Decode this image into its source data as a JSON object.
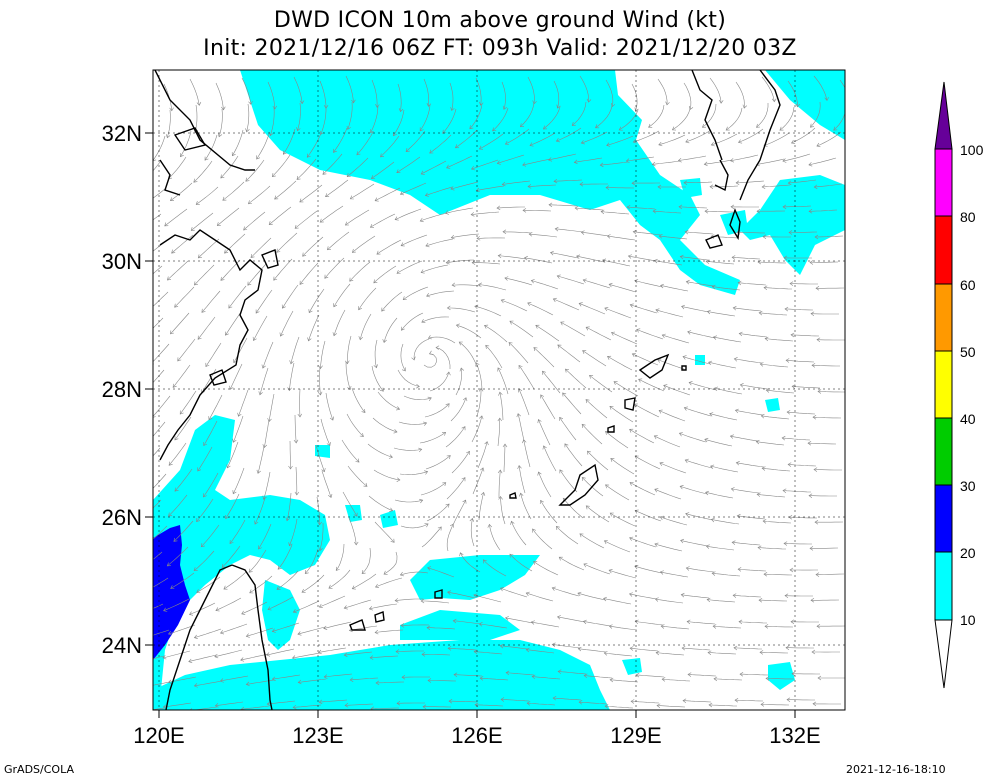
{
  "title": {
    "line1": "DWD ICON 10m above ground Wind (kt)",
    "line2": "Init: 2021/12/16 06Z  FT: 093h  Valid: 2021/12/20 03Z"
  },
  "map": {
    "lat_labels": [
      "32N",
      "30N",
      "28N",
      "26N",
      "24N"
    ],
    "lon_labels": [
      "120E",
      "123E",
      "126E",
      "129E",
      "132E"
    ],
    "lon_range": [
      120,
      133
    ],
    "lat_range": [
      23,
      33
    ]
  },
  "legend": {
    "labels": [
      "10",
      "20",
      "30",
      "40",
      "50",
      "60",
      "80",
      "100"
    ],
    "colors": {
      "10-20": "#00ffff",
      "20-30": "#0000ff",
      "30-40": "#00cc00",
      "40-50": "#ffff00",
      "50-60": "#ff9900",
      "60-80": "#ff0000",
      "80-100": "#ff00ff",
      "100+": "#660099"
    }
  },
  "footer": {
    "left": "GrADS/COLA",
    "right": "2021-12-16-18:10"
  }
}
